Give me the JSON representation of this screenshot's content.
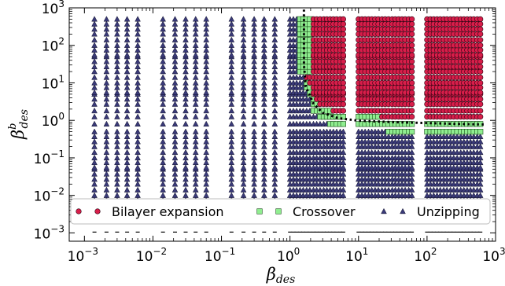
{
  "chart_data": {
    "type": "scatter",
    "x_scale": "log",
    "y_scale": "log",
    "xlim": [
      0.0006,
      1000
    ],
    "ylim": [
      0.0006,
      1000
    ],
    "x_tick_exponents": [
      -3,
      -2,
      -1,
      0,
      1,
      2,
      3
    ],
    "y_tick_exponents": [
      -3,
      -2,
      -1,
      0,
      1,
      2,
      3
    ],
    "tick_base": "10",
    "xlabel": {
      "symbol": "β",
      "sub": "des"
    },
    "ylabel": {
      "symbol": "β",
      "sup": "b",
      "sub": "des"
    },
    "legend": {
      "placement": "bottom",
      "entries": [
        {
          "label": "Bilayer expansion",
          "marker": "circle",
          "color": "#d81e4a"
        },
        {
          "label": "Crossover",
          "marker": "square",
          "color": "#90ee90"
        },
        {
          "label": "Unzipping",
          "marker": "triangle",
          "color": "#3a3a78"
        }
      ]
    },
    "x_groups": [
      [
        0.0014,
        0.0021,
        0.003,
        0.0042,
        0.006
      ],
      [
        0.014,
        0.021,
        0.03,
        0.042,
        0.06
      ],
      [
        0.14,
        0.21,
        0.3,
        0.42,
        0.6
      ],
      [
        1.0,
        1.12,
        1.25,
        1.4,
        1.56,
        1.75,
        1.95,
        2.2,
        2.45,
        2.75,
        3.1,
        3.45,
        3.85,
        4.3,
        4.8,
        5.4,
        6.0
      ],
      [
        10,
        11.2,
        12.5,
        14,
        15.6,
        17.5,
        19.5,
        22,
        24.5,
        27.5,
        31,
        34.5,
        38.5,
        43,
        48,
        54,
        60
      ],
      [
        100,
        112,
        125,
        140,
        156,
        175,
        195,
        220,
        245,
        275,
        310,
        345,
        385,
        430,
        480,
        540,
        600
      ]
    ],
    "y_groups": [
      [
        0.0055,
        0.0075,
        0.01,
        0.014,
        0.02,
        0.027,
        0.037,
        0.05
      ],
      [
        0.055,
        0.075,
        0.1,
        0.14,
        0.2,
        0.27,
        0.37,
        0.5
      ],
      [
        0.8,
        1.25,
        1.8,
        2.7,
        3.7,
        5.0
      ],
      [
        5.5,
        7.5,
        10,
        14,
        20,
        27,
        37,
        50
      ],
      [
        55,
        75,
        100,
        140,
        200,
        270,
        370,
        500
      ]
    ],
    "boundary": {
      "style": "dotted",
      "x": [
        1.6,
        1.6,
        1.7,
        2.2,
        3.0,
        5.0,
        10,
        30,
        100,
        300,
        700
      ],
      "y": [
        900,
        30,
        8,
        2.8,
        1.6,
        1.15,
        0.98,
        0.9,
        0.85,
        0.8,
        0.78
      ]
    },
    "y_floor_dash_value": 0.00105,
    "grid": false
  }
}
